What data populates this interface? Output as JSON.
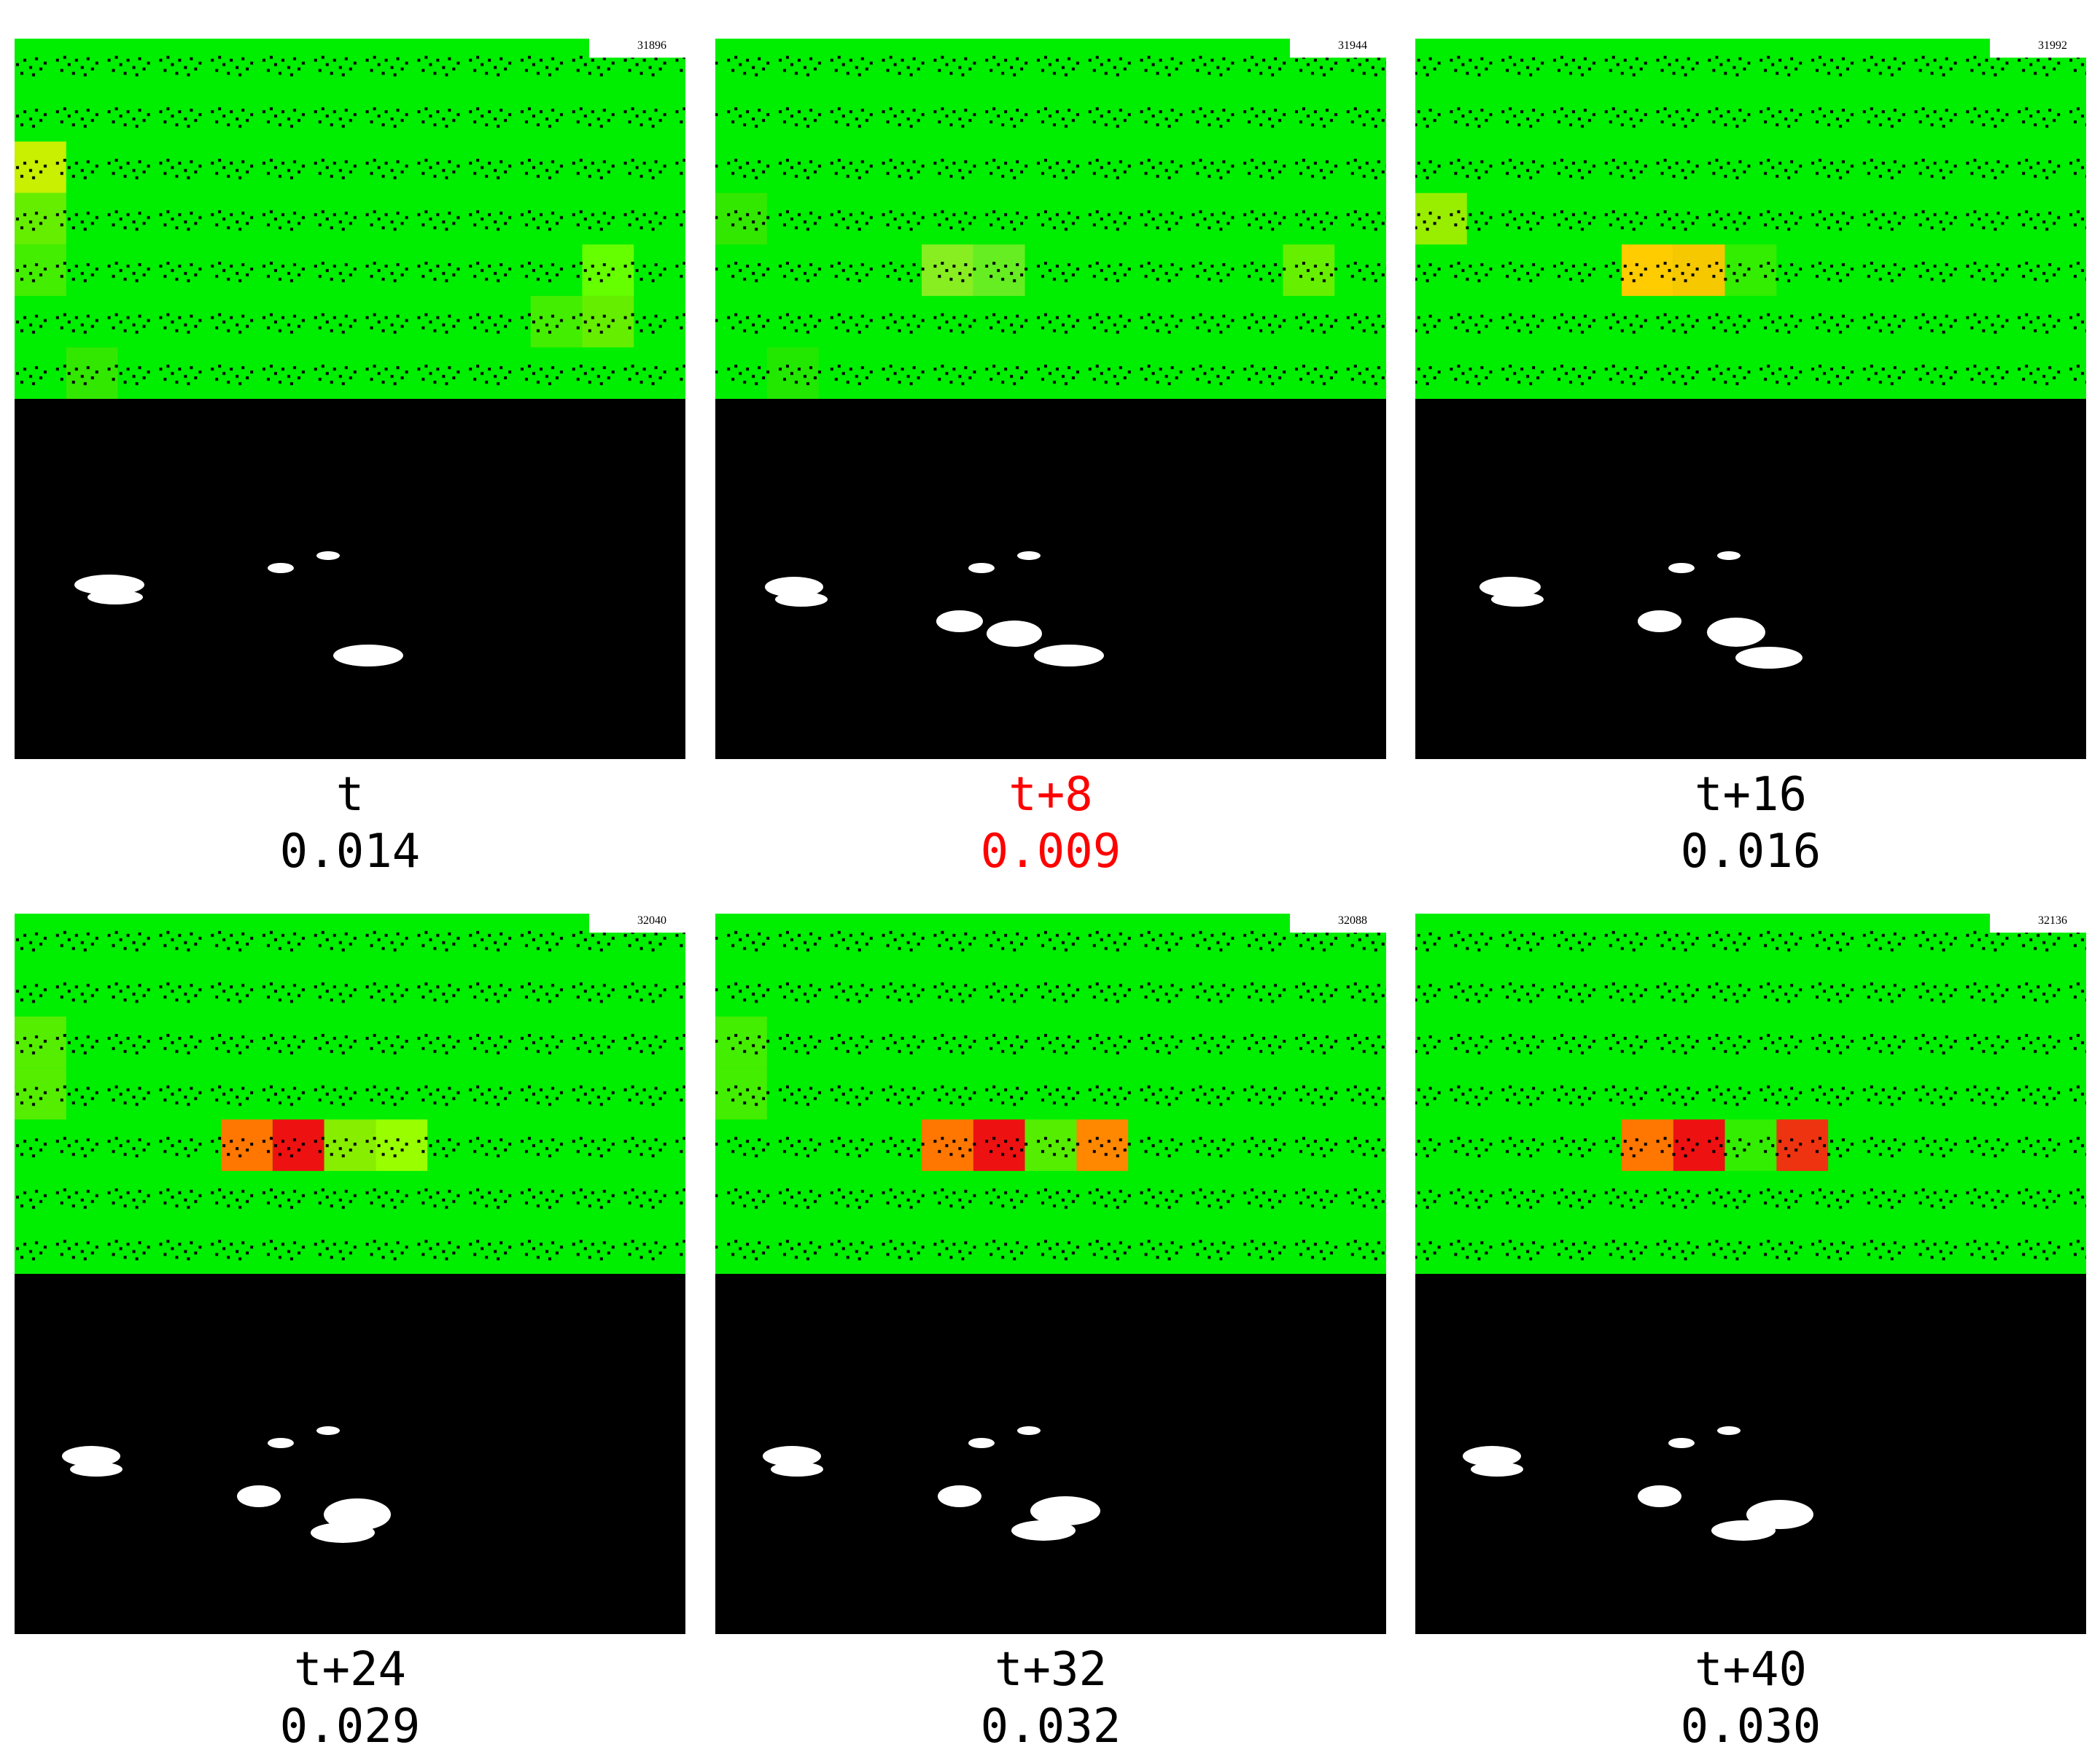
{
  "panels": [
    {
      "frame": "31896",
      "label": "t",
      "score": "0.014",
      "color": "#000000"
    },
    {
      "frame": "31944",
      "label": "t+8",
      "score": "0.009",
      "color": "#ff0000"
    },
    {
      "frame": "31992",
      "label": "t+16",
      "score": "0.016",
      "color": "#000000"
    },
    {
      "frame": "32040",
      "label": "t+24",
      "score": "0.029",
      "color": "#000000"
    },
    {
      "frame": "32088",
      "label": "t+32",
      "score": "0.032",
      "color": "#000000"
    },
    {
      "frame": "32136",
      "label": "t+40",
      "score": "0.030",
      "color": "#000000"
    }
  ]
}
